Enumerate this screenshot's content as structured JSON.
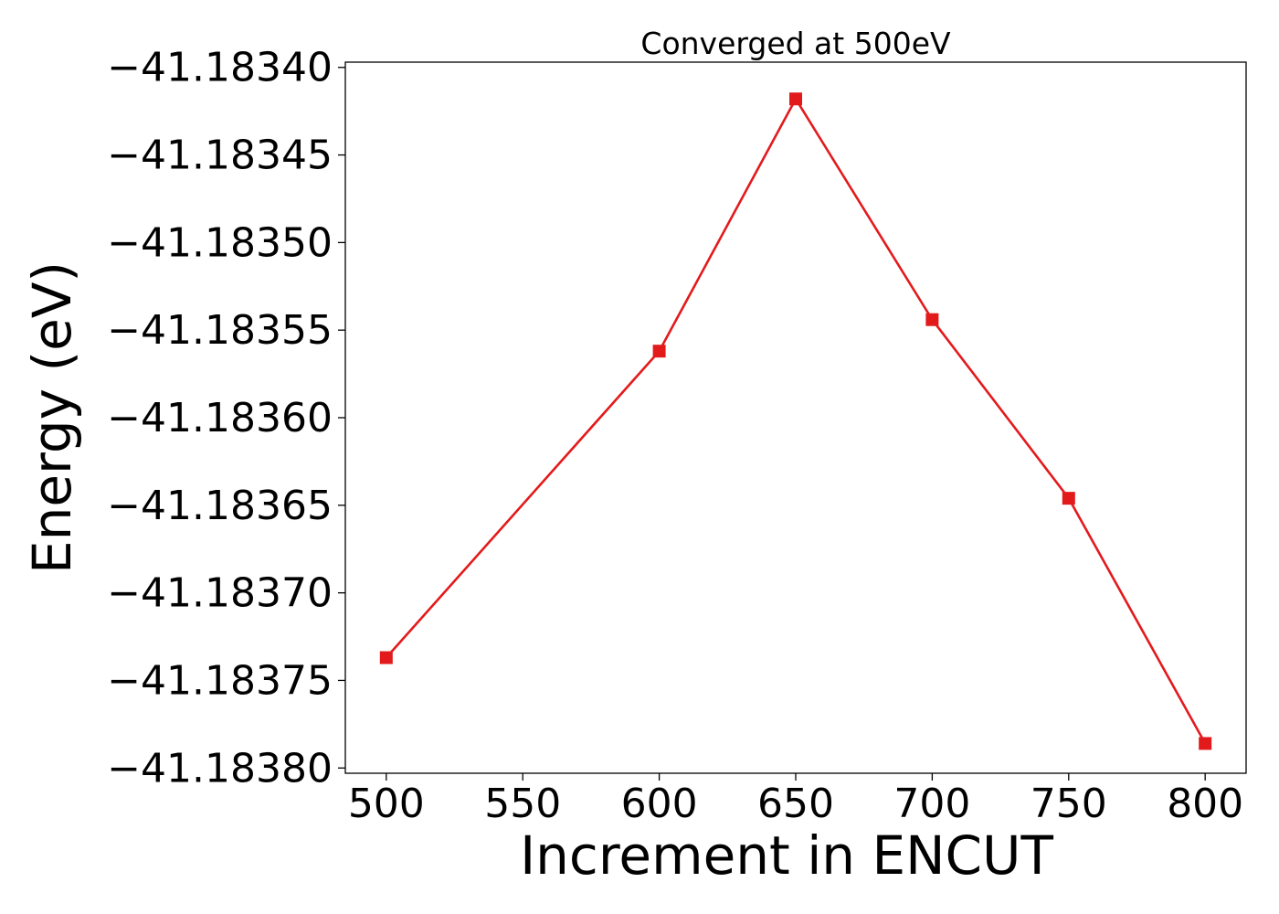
{
  "chart_data": {
    "type": "line",
    "title": "Converged at 500eV",
    "xlabel": "Increment in ENCUT",
    "ylabel": "Energy (eV)",
    "x": [
      500,
      600,
      650,
      700,
      750,
      800
    ],
    "series": [
      {
        "values": [
          -41.183737,
          -41.183562,
          -41.183418,
          -41.183544,
          -41.183646,
          -41.183786
        ],
        "color": "#e31a1c",
        "marker": "square"
      }
    ],
    "xlim": [
      485,
      815
    ],
    "ylim": [
      -41.183803,
      -41.183397
    ],
    "xticks": [
      500,
      550,
      600,
      650,
      700,
      750,
      800
    ],
    "xtick_labels": [
      "500",
      "550",
      "600",
      "650",
      "700",
      "750",
      "800"
    ],
    "yticks": [
      -41.1834,
      -41.18345,
      -41.1835,
      -41.18355,
      -41.1836,
      -41.18365,
      -41.1837,
      -41.18375,
      -41.1838
    ],
    "ytick_labels": [
      "−41.18340",
      "−41.18345",
      "−41.18350",
      "−41.18355",
      "−41.18360",
      "−41.18365",
      "−41.18370",
      "−41.18375",
      "−41.18380"
    ],
    "grid": false,
    "legend": "none"
  }
}
